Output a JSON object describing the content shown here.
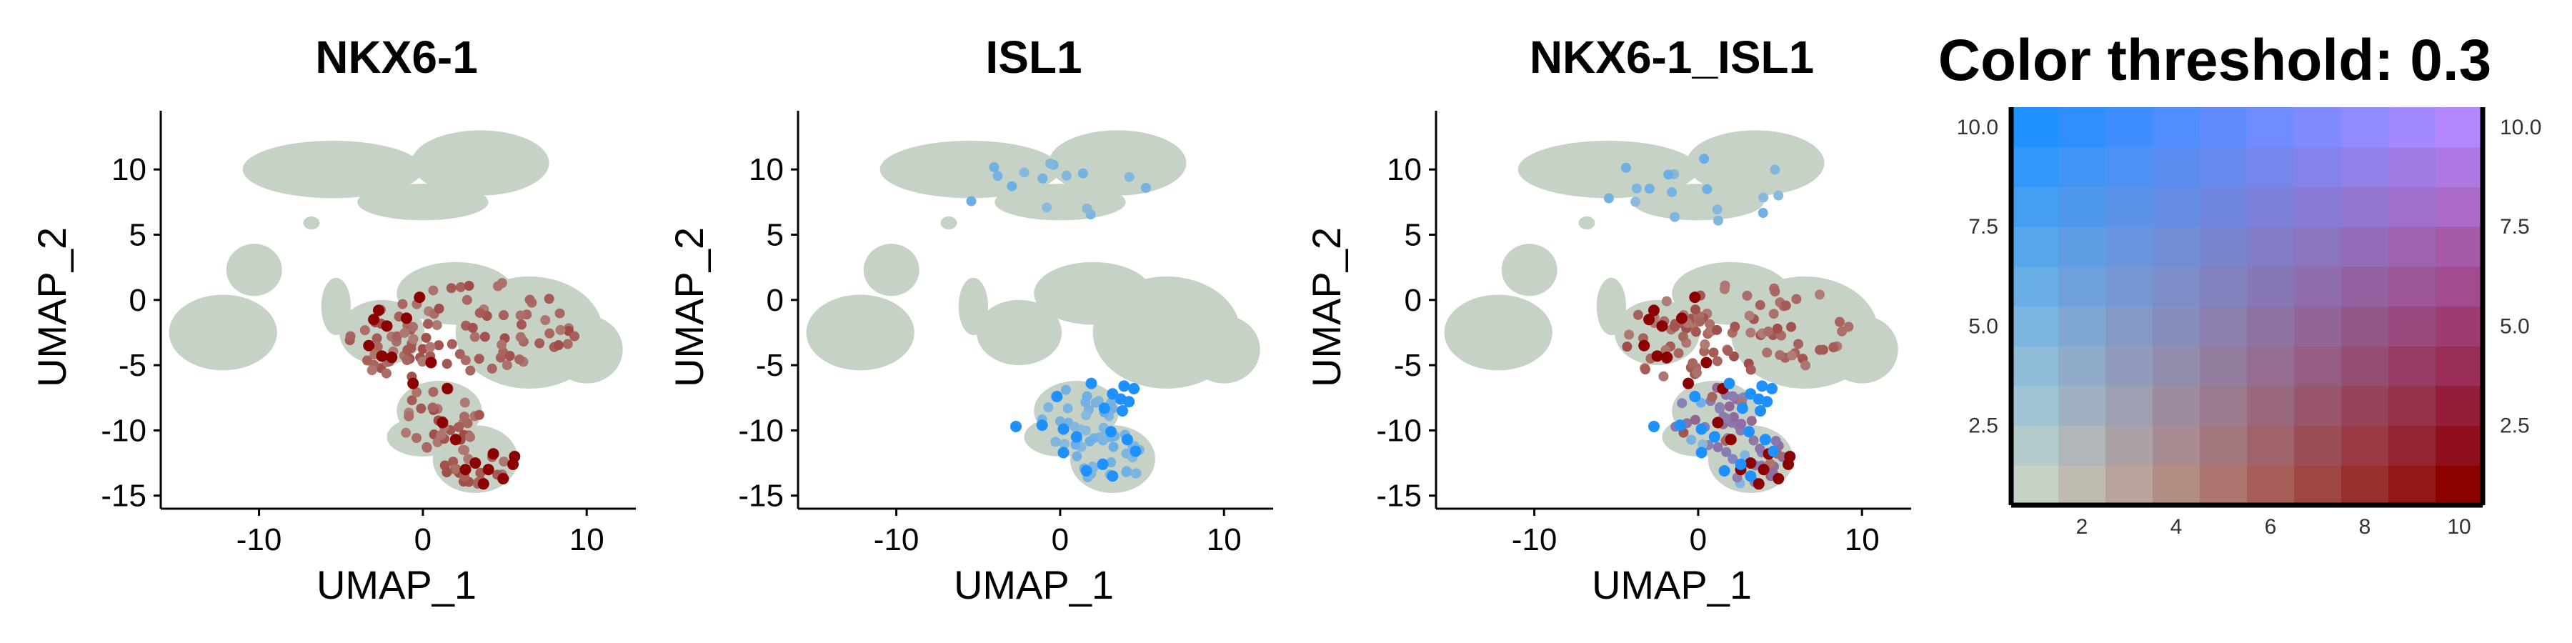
{
  "figure": {
    "panels": [
      {
        "title": "NKX6-1",
        "xlabel": "UMAP_1",
        "ylabel": "UMAP_2",
        "mode": "a"
      },
      {
        "title": "ISL1",
        "xlabel": "UMAP_1",
        "ylabel": "UMAP_2",
        "mode": "b"
      },
      {
        "title": "NKX6-1_ISL1",
        "xlabel": "UMAP_1",
        "ylabel": "UMAP_2",
        "mode": "ab"
      }
    ],
    "legend": {
      "title": "Color threshold: 0.3",
      "x_ticks": [
        "2",
        "4",
        "6",
        "8",
        "10"
      ],
      "y_ticks": [
        "2.5",
        "5.0",
        "7.5",
        "10.0"
      ],
      "x_range": [
        0.5,
        10.5
      ],
      "y_range": [
        0.5,
        10.5
      ],
      "steps": 10
    }
  },
  "colors": {
    "background_cells": "#c7d2c6",
    "gene1_high": "#8b0000",
    "gene2_high": "#1e90ff",
    "coexpression_high": "#b388ff"
  },
  "chart_data": {
    "type": "scatter",
    "title": "",
    "panels": [
      "NKX6-1",
      "ISL1",
      "NKX6-1_ISL1"
    ],
    "xlabel": "UMAP_1",
    "ylabel": "UMAP_2",
    "xlim": [
      -16,
      13
    ],
    "ylim": [
      -16,
      14.5
    ],
    "x_ticks": [
      -10,
      0,
      10
    ],
    "y_ticks": [
      -15,
      -10,
      -5,
      0,
      5,
      10
    ],
    "color_threshold": 0.3,
    "clusters": [
      {
        "x": -5.5,
        "y": 10.0,
        "rx": 5.5,
        "ry": 2.2
      },
      {
        "x": 3.5,
        "y": 10.5,
        "rx": 4.2,
        "ry": 2.5
      },
      {
        "x": 0.0,
        "y": 7.5,
        "rx": 4.0,
        "ry": 1.4
      },
      {
        "x": -6.8,
        "y": 5.9,
        "rx": 0.5,
        "ry": 0.5
      },
      {
        "x": -10.3,
        "y": 2.3,
        "rx": 1.7,
        "ry": 2.0
      },
      {
        "x": -12.2,
        "y": -2.5,
        "rx": 3.3,
        "ry": 2.9
      },
      {
        "x": -5.3,
        "y": -0.5,
        "rx": 0.9,
        "ry": 2.2
      },
      {
        "x": -2.5,
        "y": -2.5,
        "rx": 2.6,
        "ry": 2.5
      },
      {
        "x": 2.0,
        "y": 0.5,
        "rx": 3.6,
        "ry": 2.4
      },
      {
        "x": 6.5,
        "y": -2.5,
        "rx": 4.5,
        "ry": 4.3
      },
      {
        "x": 10.0,
        "y": -3.8,
        "rx": 2.2,
        "ry": 2.6
      },
      {
        "x": 1.0,
        "y": -8.5,
        "rx": 2.6,
        "ry": 2.3
      },
      {
        "x": 3.2,
        "y": -12.2,
        "rx": 2.6,
        "ry": 2.6
      },
      {
        "x": 0.0,
        "y": -10.5,
        "rx": 2.2,
        "ry": 1.5
      }
    ],
    "series": [
      {
        "name": "NKX6-1",
        "points": [
          [
            -2.7,
            -0.8
          ],
          [
            -3.0,
            -1.5
          ],
          [
            -2.2,
            -2.0
          ],
          [
            -3.3,
            -3.5
          ],
          [
            -2.5,
            -4.3
          ],
          [
            -0.2,
            0.2
          ],
          [
            -1.0,
            -1.4
          ],
          [
            -1.9,
            -4.4
          ],
          [
            0.5,
            -4.8
          ],
          [
            -0.6,
            -6.4
          ],
          [
            1.5,
            -6.8
          ],
          [
            1.2,
            -9.4
          ],
          [
            2.0,
            -10.7
          ],
          [
            3.2,
            -12.5
          ],
          [
            4.0,
            -13.0
          ],
          [
            4.9,
            -13.7
          ],
          [
            5.5,
            -12.6
          ],
          [
            3.7,
            -14.1
          ],
          [
            2.6,
            -13.0
          ],
          [
            5.6,
            -12.0
          ],
          [
            4.3,
            -11.8
          ]
        ]
      },
      {
        "name": "ISL1",
        "points": [
          [
            -0.2,
            -7.4
          ],
          [
            -1.1,
            -9.6
          ],
          [
            0.2,
            -9.9
          ],
          [
            1.0,
            -10.5
          ],
          [
            2.7,
            -8.3
          ],
          [
            3.2,
            -7.2
          ],
          [
            3.7,
            -7.6
          ],
          [
            4.2,
            -7.8
          ],
          [
            4.5,
            -6.8
          ],
          [
            3.9,
            -6.6
          ],
          [
            4.1,
            -10.7
          ],
          [
            4.6,
            -11.6
          ],
          [
            2.6,
            -12.6
          ],
          [
            3.2,
            -13.5
          ],
          [
            1.6,
            -13.1
          ],
          [
            -2.7,
            -9.7
          ],
          [
            3.1,
            -10.1
          ],
          [
            0.2,
            -11.7
          ],
          [
            3.8,
            -8.5
          ],
          [
            1.9,
            -6.4
          ]
        ]
      },
      {
        "name": "NKX6-1_ISL1",
        "points": []
      }
    ]
  }
}
